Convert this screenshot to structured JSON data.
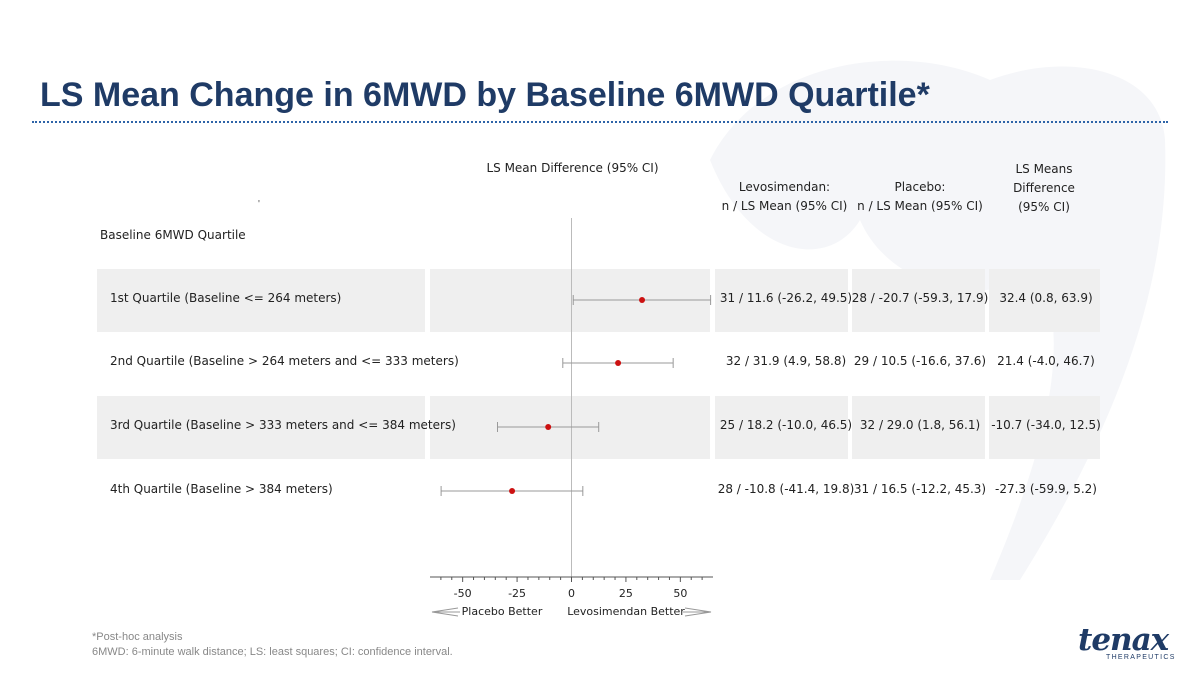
{
  "slide": {
    "title": "LS Mean Change in 6MWD by Baseline 6MWD Quartile*",
    "footnotes": [
      "*Post-hoc analysis",
      "6MWD: 6-minute walk distance; LS: least squares; CI: confidence interval."
    ]
  },
  "table": {
    "section_label": "Baseline 6MWD Quartile",
    "headers": {
      "forest": "LS Mean Difference (95% CI)",
      "levo": [
        "Levosimendan:",
        "n / LS Mean (95% CI)"
      ],
      "placebo": [
        "Placebo:",
        "n /  LS Mean (95% CI)"
      ],
      "diff": [
        "LS Means",
        "Difference",
        "(95% CI)"
      ]
    },
    "rows": [
      {
        "label": "1st Quartile (Baseline <= 264 meters)",
        "levo": "31 / 11.6 (-26.2, 49.5)",
        "placebo": "28 / -20.7 (-59.3, 17.9)",
        "diff": "32.4 (0.8, 63.9)"
      },
      {
        "label": "2nd Quartile (Baseline > 264 meters  and <= 333 meters)",
        "levo": "32 / 31.9 (4.9, 58.8)",
        "placebo": "29 / 10.5 (-16.6, 37.6)",
        "diff": "21.4 (-4.0, 46.7)"
      },
      {
        "label": "3rd Quartile (Baseline > 333 meters  and <= 384 meters)",
        "levo": "25 / 18.2 (-10.0, 46.5)",
        "placebo": "32 / 29.0 (1.8, 56.1)",
        "diff": "-10.7 (-34.0, 12.5)"
      },
      {
        "label": "4th Quartile (Baseline > 384 meters)",
        "levo": "28 / -10.8 (-41.4, 19.8)",
        "placebo": "31 / 16.5 (-12.2, 45.3)",
        "diff": "-27.3 (-59.9, 5.2)"
      }
    ]
  },
  "chart_data": {
    "type": "scatter",
    "subtype": "forest-plot",
    "title": "LS Mean Difference (95% CI)",
    "categories": [
      "1st Quartile (Baseline <= 264 meters)",
      "2nd Quartile (Baseline > 264 meters  and <= 333 meters)",
      "3rd Quartile (Baseline > 333 meters  and <= 384 meters)",
      "4th Quartile (Baseline > 384 meters)"
    ],
    "estimates": [
      32.4,
      21.4,
      -10.7,
      -27.3
    ],
    "ci_lower": [
      0.8,
      -4.0,
      -34.0,
      -59.9
    ],
    "ci_upper": [
      63.9,
      46.7,
      12.5,
      5.2
    ],
    "xticks": [
      -50,
      -25,
      0,
      25,
      50
    ],
    "xlim": [
      -65,
      65
    ],
    "reference_line": 0,
    "direction_labels": {
      "left": "Placebo Better",
      "right": "Levosimendan Better"
    },
    "colors": {
      "point": "#cc1111",
      "ci": "#999999",
      "axis": "#555555",
      "reference": "#bbbbbb"
    }
  },
  "brand": {
    "name": "tenax",
    "sub": "THERAPEUTICS",
    "color": "#1f3b66"
  }
}
